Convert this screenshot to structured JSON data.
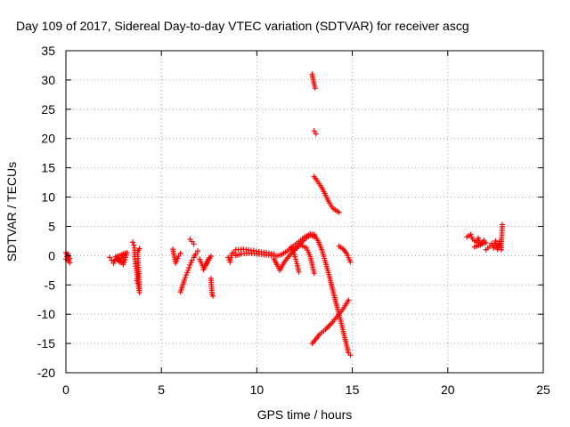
{
  "chart_data": {
    "type": "scatter",
    "title": "Day 109 of 2017, Sidereal Day-to-day VTEC variation (SDTVAR) for receiver ascg",
    "xlabel": "GPS time / hours",
    "ylabel": "SDTVAR / TECUs",
    "xlim": [
      0,
      25
    ],
    "ylim": [
      -20,
      35
    ],
    "xticks": [
      0,
      5,
      10,
      15,
      20,
      25
    ],
    "yticks": [
      -20,
      -15,
      -10,
      -5,
      0,
      5,
      10,
      15,
      20,
      25,
      30,
      35
    ],
    "xtick_labels": [
      "0",
      "5",
      "10",
      "15",
      "20",
      "25"
    ],
    "ytick_labels": [
      "-20",
      "-15",
      "-10",
      "-5",
      "0",
      "5",
      "10",
      "15",
      "20",
      "25",
      "30",
      "35"
    ],
    "grid": true,
    "marker": "+",
    "color": "#ff0000",
    "series": [
      {
        "name": "SDTVAR",
        "segments": [
          [
            [
              0.0,
              0.5
            ],
            [
              0.05,
              0.2
            ],
            [
              0.1,
              -0.3
            ],
            [
              0.15,
              -0.8
            ],
            [
              0.2,
              -1.2
            ],
            [
              0.0,
              -0.6
            ],
            [
              0.1,
              0.3
            ],
            [
              0.2,
              -0.5
            ]
          ],
          [
            [
              2.3,
              -0.3
            ],
            [
              2.4,
              -0.8
            ],
            [
              2.5,
              -1.3
            ],
            [
              2.6,
              -0.6
            ],
            [
              2.7,
              -0.1
            ],
            [
              2.8,
              -1.1
            ],
            [
              2.9,
              -0.4
            ],
            [
              3.0,
              0.3
            ],
            [
              3.0,
              -1.5
            ],
            [
              3.1,
              -0.7
            ],
            [
              3.2,
              0.5
            ],
            [
              2.6,
              -0.2
            ],
            [
              2.9,
              -1.2
            ]
          ],
          [
            [
              3.5,
              2.3
            ],
            [
              3.55,
              1.8
            ],
            [
              3.6,
              1.3
            ],
            [
              3.6,
              -0.2
            ],
            [
              3.65,
              -1.8
            ],
            [
              3.7,
              -2.6
            ],
            [
              3.75,
              -3.6
            ],
            [
              3.7,
              -4.3
            ],
            [
              3.8,
              -5.2
            ],
            [
              3.85,
              -6.3
            ],
            [
              3.8,
              -2.0
            ],
            [
              3.75,
              0.6
            ],
            [
              3.85,
              1.2
            ]
          ],
          [
            [
              5.6,
              1.1
            ],
            [
              5.7,
              -0.6
            ],
            [
              5.75,
              -1.3
            ],
            [
              5.9,
              -0.1
            ],
            [
              6.0,
              0.4
            ]
          ],
          [
            [
              6.0,
              -6.2
            ],
            [
              6.1,
              -5.2
            ],
            [
              6.2,
              -4.2
            ],
            [
              6.3,
              -3.3
            ],
            [
              6.4,
              -2.5
            ],
            [
              6.5,
              -1.6
            ],
            [
              6.6,
              -0.8
            ],
            [
              6.7,
              -0.3
            ],
            [
              6.8,
              0.3
            ],
            [
              6.9,
              0.8
            ]
          ],
          [
            [
              6.5,
              2.8
            ],
            [
              6.6,
              2.4
            ],
            [
              6.7,
              2.0
            ]
          ],
          [
            [
              7.0,
              -0.6
            ],
            [
              7.1,
              -1.3
            ],
            [
              7.2,
              -2.0
            ],
            [
              7.3,
              -1.6
            ],
            [
              7.4,
              -1.0
            ],
            [
              7.5,
              -0.4
            ],
            [
              7.6,
              -0.1
            ],
            [
              7.2,
              -2.4
            ]
          ],
          [
            [
              7.6,
              -3.9
            ],
            [
              7.65,
              -6.6
            ],
            [
              7.7,
              -6.9
            ]
          ],
          [
            [
              8.5,
              -0.3
            ],
            [
              8.6,
              -1.1
            ],
            [
              8.7,
              0.4
            ],
            [
              8.8,
              0.5
            ]
          ],
          [
            [
              8.9,
              0.0
            ],
            [
              9.2,
              0.3
            ],
            [
              9.6,
              0.4
            ],
            [
              10.0,
              0.3
            ],
            [
              10.5,
              0.1
            ],
            [
              11.0,
              -0.1
            ],
            [
              11.3,
              0.2
            ],
            [
              11.6,
              0.8
            ],
            [
              11.9,
              1.6
            ],
            [
              12.2,
              2.4
            ],
            [
              12.5,
              3.2
            ],
            [
              12.8,
              3.7
            ],
            [
              13.0,
              3.5
            ]
          ],
          [
            [
              8.9,
              1.0
            ],
            [
              9.3,
              1.1
            ],
            [
              9.7,
              0.9
            ],
            [
              10.1,
              0.7
            ],
            [
              10.5,
              0.5
            ],
            [
              10.9,
              0.3
            ]
          ],
          [
            [
              10.9,
              -0.6
            ],
            [
              11.1,
              -1.8
            ],
            [
              11.2,
              -2.5
            ],
            [
              11.4,
              -1.3
            ],
            [
              11.6,
              -0.4
            ],
            [
              11.9,
              0.7
            ],
            [
              12.2,
              1.8
            ],
            [
              12.5,
              2.8
            ],
            [
              12.8,
              3.5
            ],
            [
              13.0,
              3.2
            ]
          ],
          [
            [
              11.8,
              1.5
            ],
            [
              12.0,
              -0.2
            ],
            [
              12.1,
              -1.4
            ],
            [
              12.2,
              -2.8
            ]
          ],
          [
            [
              12.0,
              1.0
            ],
            [
              12.3,
              1.8
            ],
            [
              12.6,
              1.3
            ],
            [
              12.8,
              -0.2
            ],
            [
              12.9,
              -1.6
            ],
            [
              13.0,
              -3.0
            ]
          ],
          [
            [
              12.9,
              31.0
            ],
            [
              12.95,
              30.0
            ],
            [
              13.0,
              29.3
            ],
            [
              13.05,
              28.6
            ],
            [
              13.0,
              21.3
            ],
            [
              13.1,
              20.8
            ],
            [
              13.0,
              13.5
            ],
            [
              13.2,
              12.6
            ],
            [
              13.4,
              11.6
            ],
            [
              13.6,
              10.3
            ],
            [
              13.8,
              9.0
            ],
            [
              14.0,
              8.0
            ],
            [
              14.3,
              7.4
            ]
          ],
          [
            [
              13.0,
              3.6
            ],
            [
              13.2,
              2.6
            ],
            [
              13.4,
              1.0
            ],
            [
              13.6,
              -1.2
            ],
            [
              13.8,
              -3.6
            ],
            [
              14.0,
              -6.2
            ],
            [
              14.2,
              -8.8
            ],
            [
              14.4,
              -11.2
            ],
            [
              14.6,
              -14.0
            ],
            [
              14.8,
              -16.6
            ],
            [
              14.9,
              -17.0
            ]
          ],
          [
            [
              12.9,
              -15.0
            ],
            [
              13.1,
              -14.2
            ],
            [
              13.3,
              -13.4
            ],
            [
              13.6,
              -12.6
            ],
            [
              13.9,
              -11.6
            ],
            [
              14.2,
              -10.4
            ],
            [
              14.5,
              -9.2
            ],
            [
              14.8,
              -7.6
            ]
          ],
          [
            [
              14.3,
              1.6
            ],
            [
              14.5,
              1.2
            ],
            [
              14.7,
              0.4
            ],
            [
              14.9,
              -1.1
            ]
          ],
          [
            [
              21.0,
              3.2
            ],
            [
              21.2,
              3.6
            ],
            [
              21.3,
              2.8
            ],
            [
              21.5,
              2.3
            ],
            [
              21.6,
              3.0
            ],
            [
              21.7,
              1.8
            ],
            [
              21.9,
              2.6
            ],
            [
              22.0,
              2.2
            ],
            [
              21.4,
              1.5
            ],
            [
              21.8,
              2.0
            ]
          ],
          [
            [
              22.0,
              1.0
            ],
            [
              22.2,
              1.6
            ],
            [
              22.3,
              2.1
            ],
            [
              22.4,
              1.3
            ],
            [
              22.5,
              2.5
            ],
            [
              22.6,
              1.1
            ],
            [
              22.7,
              2.4
            ],
            [
              22.8,
              1.0
            ],
            [
              22.85,
              5.3
            ]
          ]
        ]
      }
    ]
  }
}
